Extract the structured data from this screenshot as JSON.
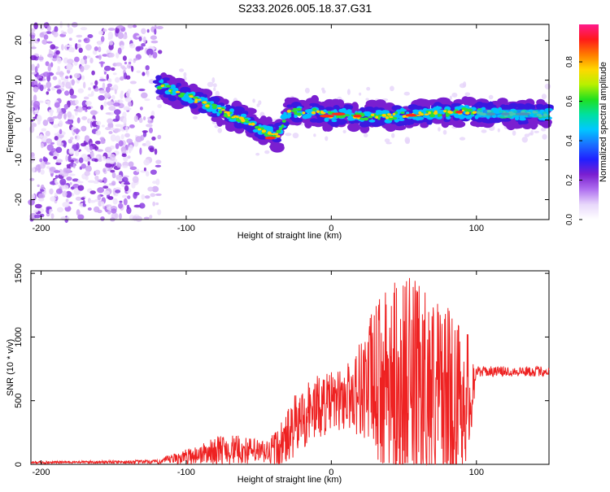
{
  "figure_title": "S233.2026.005.18.37.G31",
  "colors": {
    "snr_line": "#ee2222",
    "spectro_cmap": [
      "#ffffff",
      "#e0c8f8",
      "#b070f0",
      "#7a1fd0",
      "#3a18e0",
      "#1e5cff",
      "#00c0ff",
      "#00e0a0",
      "#30e030",
      "#c0e800",
      "#ffd000",
      "#ff7000",
      "#ff1010",
      "#ff2070"
    ],
    "colorbar": [
      "#ff1a8c",
      "#ff1a1a",
      "#ff7a00",
      "#ffd800",
      "#b8f000",
      "#20e020",
      "#00e0a0",
      "#00c8ff",
      "#1a70ff",
      "#2020ff",
      "#7a1fd0",
      "#b070f0",
      "#e8d8fb",
      "#ffffff"
    ]
  },
  "chart_data": [
    {
      "type": "heatmap",
      "name": "spectrogram",
      "title": "S233.2026.005.18.37.G31",
      "xlabel": "Height of straight line (km)",
      "ylabel": "Frequency (Hz)",
      "xlim": [
        -207,
        150
      ],
      "ylim": [
        -25,
        24
      ],
      "xticks": [
        -200,
        -100,
        0,
        100
      ],
      "xtick_labels": [
        "-200",
        "-100",
        "0",
        "100"
      ],
      "yticks": [
        -20,
        -10,
        0,
        10,
        20
      ],
      "ytick_labels": [
        "-20",
        "-10",
        "0",
        "10",
        "20"
      ],
      "colorbar": {
        "label": "Normalized spectral amplitude",
        "range": [
          0,
          0.99
        ],
        "ticks": [
          0.0,
          0.2,
          0.4,
          0.6,
          0.8
        ],
        "tick_labels": [
          "0.0",
          "0.2",
          "0.4",
          "0.6",
          "0.8"
        ]
      },
      "ridge": {
        "description_points_km": [
          -120,
          -100,
          -80,
          -60,
          -45,
          -37,
          -30,
          -20,
          -10,
          0,
          10,
          20,
          40,
          60,
          90,
          100,
          120,
          150
        ],
        "frequency_hz": [
          9,
          6,
          3,
          0,
          -3,
          -4,
          2,
          2,
          2,
          1,
          1.5,
          1,
          1,
          1.5,
          2,
          2,
          1.5,
          1.5
        ]
      },
      "regions": [
        {
          "label": "noise",
          "x_from": -207,
          "x_to": -118,
          "freq_from": -25,
          "freq_to": 24,
          "amplitude": 0.08
        },
        {
          "label": "signal",
          "x_from": -118,
          "x_to": 150,
          "amplitude_peak": 0.99
        }
      ]
    },
    {
      "type": "line",
      "name": "snr",
      "xlabel": "Height of straight line (km)",
      "ylabel": "SNR (10 * v/v)",
      "xlim": [
        -207,
        150
      ],
      "ylim": [
        0,
        1520
      ],
      "xticks": [
        -200,
        -100,
        0,
        100
      ],
      "xtick_labels": [
        "-200",
        "-100",
        "0",
        "100"
      ],
      "yticks": [
        0,
        500,
        1000,
        1500
      ],
      "ytick_labels": [
        "0",
        "500",
        "1000",
        "1500"
      ],
      "envelope": {
        "x": [
          -207,
          -170,
          -120,
          -110,
          -100,
          -90,
          -75,
          -60,
          -45,
          -35,
          -25,
          -15,
          -5,
          5,
          15,
          25,
          35,
          45,
          55,
          65,
          75,
          85,
          95,
          100,
          120,
          150
        ],
        "mean": [
          15,
          18,
          20,
          40,
          60,
          80,
          120,
          110,
          90,
          130,
          300,
          420,
          470,
          500,
          560,
          640,
          650,
          600,
          620,
          600,
          560,
          520,
          540,
          730,
          730,
          730
        ],
        "amplitude": [
          10,
          10,
          15,
          40,
          60,
          80,
          120,
          110,
          100,
          200,
          250,
          260,
          250,
          240,
          300,
          500,
          700,
          850,
          850,
          800,
          750,
          650,
          500,
          40,
          40,
          40
        ]
      }
    }
  ]
}
